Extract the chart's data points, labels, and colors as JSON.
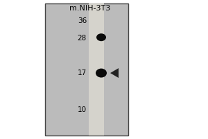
{
  "title": "m.NIH-3T3",
  "bg_color": "#c0c0c0",
  "lane_color": "#d8d6d0",
  "gel_bg": "#b8b8b8",
  "border_color": "#555555",
  "mw_markers": [
    36,
    28,
    17,
    10
  ],
  "band1_mw": 28.5,
  "band2_mw": 17,
  "fig_bg": "#ffffff",
  "right_half_color": "#ffffff"
}
